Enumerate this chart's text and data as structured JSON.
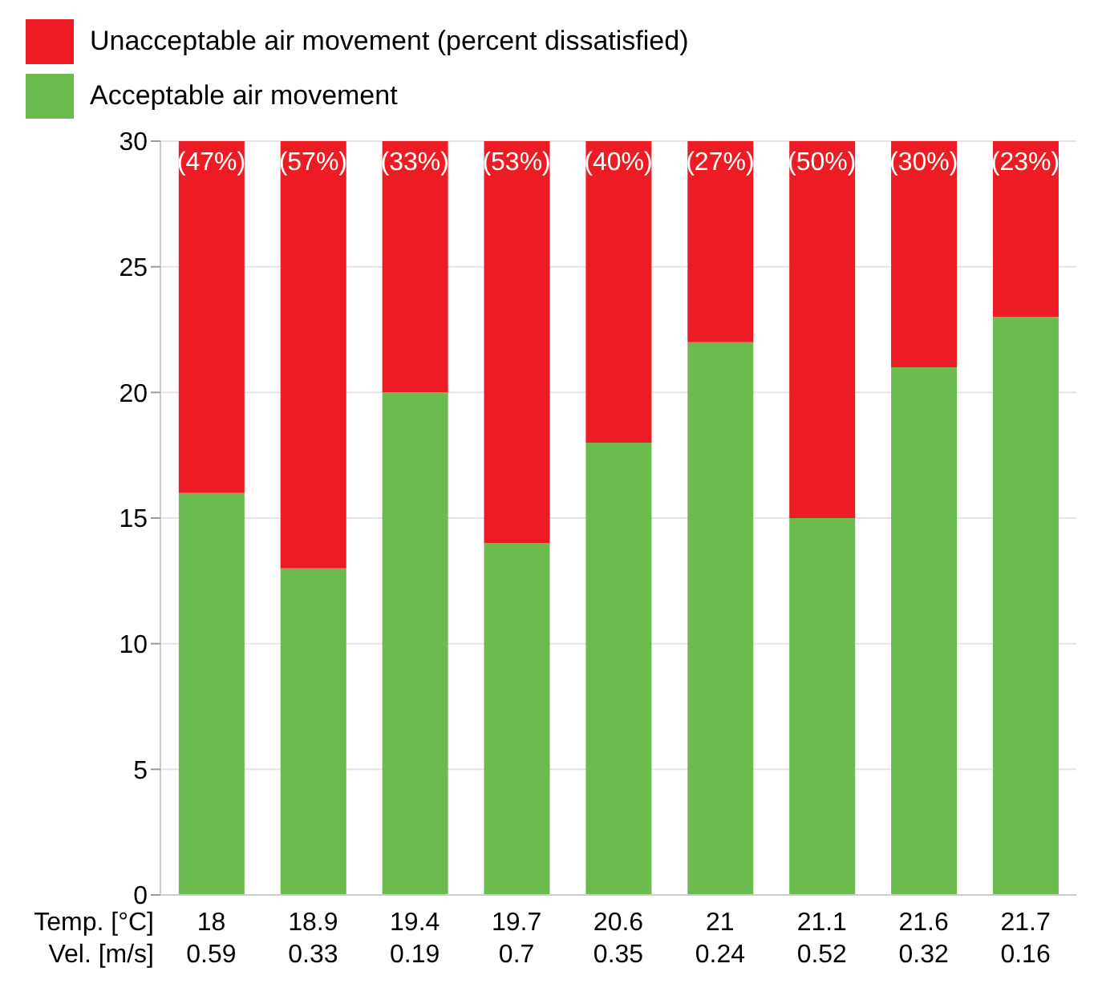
{
  "chart_data": {
    "type": "bar",
    "stacked": true,
    "xlabel": "Temp. [°C]\nVel. [m/s]",
    "categories": [
      "18\n0.59",
      "18.9\n0.33",
      "19.4\n0.19",
      "19.7\n0.7",
      "20.6\n0.35",
      "21\n0.24",
      "21.1\n0.52",
      "21.6\n0.32",
      "21.7\n0.16"
    ],
    "series": [
      {
        "name": "Acceptable air movement",
        "color": "#6cbb4e",
        "values": [
          16,
          13,
          20,
          14,
          18,
          22,
          15,
          21,
          23
        ]
      },
      {
        "name": "Unacceptable air movement (percent dissatisfied)",
        "color": "#ed1c24",
        "values": [
          14,
          17,
          10,
          16,
          12,
          8,
          15,
          9,
          7
        ]
      }
    ],
    "annotations": [
      {
        "text": "(47%)",
        "x": "18\n0.59",
        "y": 30
      },
      {
        "text": "(57%)",
        "x": "18.9\n0.33",
        "y": 30
      },
      {
        "text": "(33%)",
        "x": "19.4\n0.19",
        "y": 30
      },
      {
        "text": "(53%)",
        "x": "19.7\n0.7",
        "y": 30
      },
      {
        "text": "(40%)",
        "x": "20.6\n0.35",
        "y": 30
      },
      {
        "text": "(27%)",
        "x": "21\n0.24",
        "y": 30
      },
      {
        "text": "(50%)",
        "x": "21.1\n0.52",
        "y": 30
      },
      {
        "text": "(30%)",
        "x": "21.6\n0.32",
        "y": 30
      },
      {
        "text": "(23%)",
        "x": "21.7\n0.16",
        "y": 30
      }
    ],
    "ylim": [
      0,
      30
    ],
    "yticks": [
      0,
      5,
      10,
      15,
      20,
      25,
      30
    ],
    "grid": "y",
    "legend": "top left"
  }
}
